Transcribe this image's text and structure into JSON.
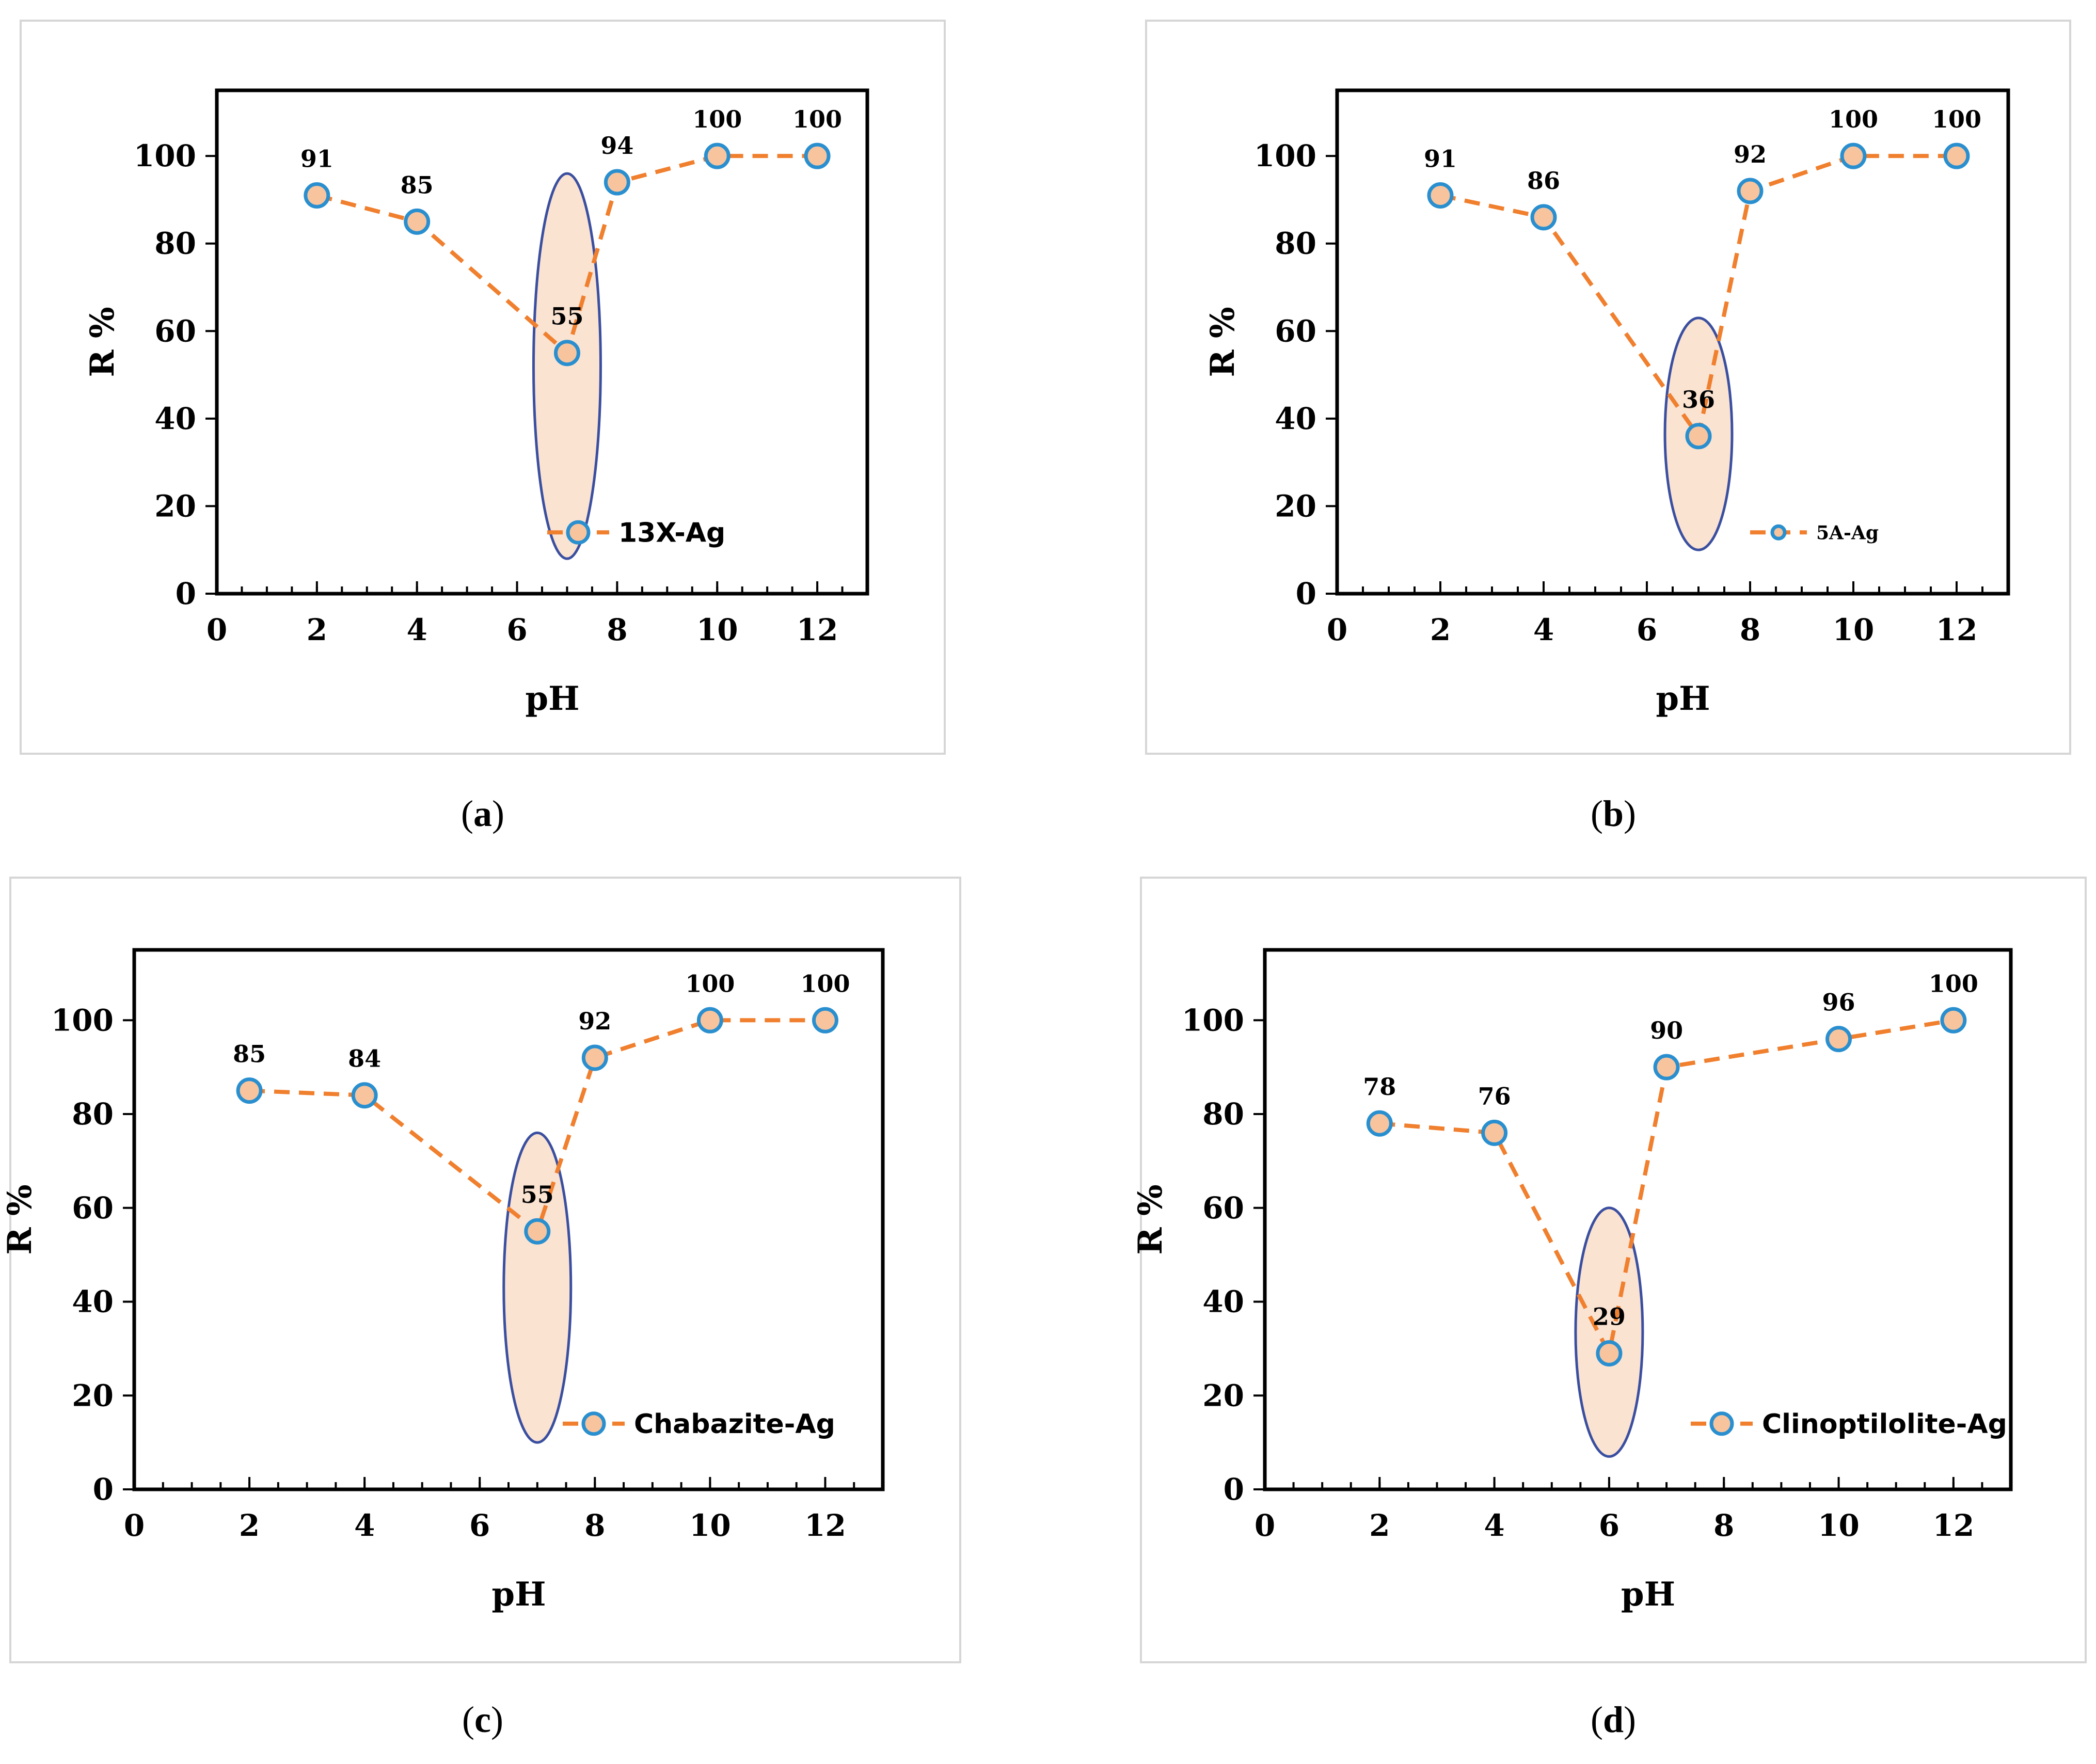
{
  "colors": {
    "line": "#f07f2e",
    "marker_fill": "#f8c49e",
    "marker_edge": "#2a8fcf",
    "highlight_fill": "#fbe3d2",
    "highlight_edge": "#3b4fa0"
  },
  "chart_data": [
    {
      "type": "line",
      "caption_letter": "a",
      "xlabel": "pH",
      "ylabel": "R %",
      "xlim": [
        0,
        13
      ],
      "ylim": [
        0,
        115
      ],
      "xticks": [
        0,
        2,
        4,
        6,
        8,
        10,
        12
      ],
      "yticks": [
        0,
        20,
        40,
        60,
        80,
        100
      ],
      "series": [
        {
          "name": "13X-Ag",
          "x": [
            2,
            4,
            7,
            8,
            10,
            12
          ],
          "values": [
            91,
            85,
            55,
            94,
            100,
            100
          ]
        }
      ],
      "data_labels": [
        "91",
        "85",
        "55",
        "94",
        "100",
        "100"
      ],
      "highlight": {
        "x": 7,
        "y_range": [
          8,
          96
        ]
      },
      "legend_position": "bottom-right"
    },
    {
      "type": "line",
      "caption_letter": "b",
      "xlabel": "pH",
      "ylabel": "R %",
      "xlim": [
        0,
        13
      ],
      "ylim": [
        0,
        115
      ],
      "xticks": [
        0,
        2,
        4,
        6,
        8,
        10,
        12
      ],
      "yticks": [
        0,
        20,
        40,
        60,
        80,
        100
      ],
      "series": [
        {
          "name": "5A-Ag",
          "x": [
            2,
            4,
            7,
            8,
            10,
            12
          ],
          "values": [
            91,
            86,
            36,
            92,
            100,
            100
          ]
        }
      ],
      "data_labels": [
        "91",
        "86",
        "36",
        "92",
        "100",
        "100"
      ],
      "highlight": {
        "x": 7,
        "y_range": [
          10,
          63
        ]
      },
      "legend_position": "bottom-right"
    },
    {
      "type": "line",
      "caption_letter": "c",
      "xlabel": "pH",
      "ylabel": "R %",
      "xlim": [
        0,
        13
      ],
      "ylim": [
        0,
        115
      ],
      "xticks": [
        0,
        2,
        4,
        6,
        8,
        10,
        12
      ],
      "yticks": [
        0,
        20,
        40,
        60,
        80,
        100
      ],
      "series": [
        {
          "name": "Chabazite-Ag",
          "x": [
            2,
            4,
            7,
            8,
            10,
            12
          ],
          "values": [
            85,
            84,
            55,
            92,
            100,
            100
          ]
        }
      ],
      "data_labels": [
        "85",
        "84",
        "55",
        "92",
        "100",
        "100"
      ],
      "highlight": {
        "x": 7,
        "y_range": [
          10,
          76
        ]
      },
      "legend_position": "bottom-right"
    },
    {
      "type": "line",
      "caption_letter": "d",
      "xlabel": "pH",
      "ylabel": "R %",
      "xlim": [
        0,
        13
      ],
      "ylim": [
        0,
        115
      ],
      "xticks": [
        0,
        2,
        4,
        6,
        8,
        10,
        12
      ],
      "yticks": [
        0,
        20,
        40,
        60,
        80,
        100
      ],
      "series": [
        {
          "name": "Clinoptilolite-Ag",
          "x": [
            2,
            4,
            6,
            7,
            10,
            12
          ],
          "values": [
            78,
            76,
            29,
            90,
            96,
            100
          ]
        }
      ],
      "data_labels": [
        "78",
        "76",
        "29",
        "90",
        "96",
        "100"
      ],
      "highlight": {
        "x": 6,
        "y_range": [
          7,
          60
        ]
      },
      "legend_position": "bottom-right"
    }
  ]
}
